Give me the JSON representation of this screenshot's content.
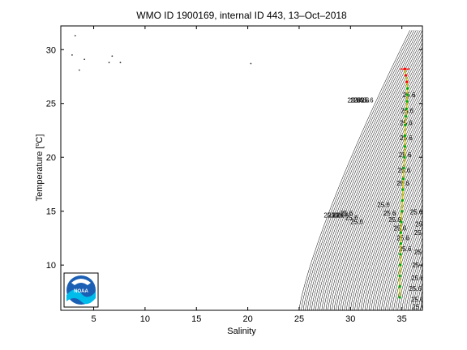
{
  "chart_data": {
    "type": "scatter",
    "title": "WMO ID 1900169, internal ID 443, 13–Oct–2018",
    "xlabel": "Salinity",
    "ylabel": "Temperature [",
    "ylabel_unit": "C]",
    "xlim": [
      1.8,
      37
    ],
    "ylim": [
      5.8,
      32.2
    ],
    "xticks": [
      5,
      10,
      15,
      20,
      25,
      30,
      35
    ],
    "yticks": [
      10,
      15,
      20,
      25,
      30
    ],
    "grid": false,
    "logo": "noaa-logo",
    "isopycnal_label": "25.6",
    "stray_points": [
      [
        3.2,
        31.3
      ],
      [
        2.9,
        29.5
      ],
      [
        4.1,
        29.1
      ],
      [
        6.8,
        29.4
      ],
      [
        6.5,
        28.8
      ],
      [
        7.6,
        28.8
      ],
      [
        3.6,
        28.1
      ],
      [
        20.3,
        28.7
      ]
    ],
    "profile": [
      [
        35.3,
        28.2
      ],
      [
        35.4,
        27.6
      ],
      [
        35.5,
        27.0
      ],
      [
        35.55,
        26.4
      ],
      [
        35.55,
        25.8
      ],
      [
        35.5,
        25.2
      ],
      [
        35.45,
        24.5
      ],
      [
        35.4,
        23.8
      ],
      [
        35.35,
        23.0
      ],
      [
        35.3,
        22.0
      ],
      [
        35.3,
        21.0
      ],
      [
        35.25,
        20.0
      ],
      [
        35.2,
        19.0
      ],
      [
        35.15,
        18.0
      ],
      [
        35.1,
        17.0
      ],
      [
        35.05,
        16.0
      ],
      [
        35.0,
        15.0
      ],
      [
        34.95,
        14.0
      ],
      [
        34.9,
        13.0
      ],
      [
        34.9,
        12.0
      ],
      [
        34.85,
        11.0
      ],
      [
        34.85,
        10.0
      ],
      [
        34.8,
        9.0
      ],
      [
        34.8,
        8.0
      ],
      [
        34.8,
        7.0
      ]
    ],
    "colors": {
      "axis": "#000000",
      "isopycnal": "#000000",
      "profile_line": "#c8c800",
      "profile_points": "#00aa00",
      "outlier": "#ff0000",
      "noaa_blue": "#1a5fb4",
      "noaa_cyan": "#00bcea"
    }
  }
}
